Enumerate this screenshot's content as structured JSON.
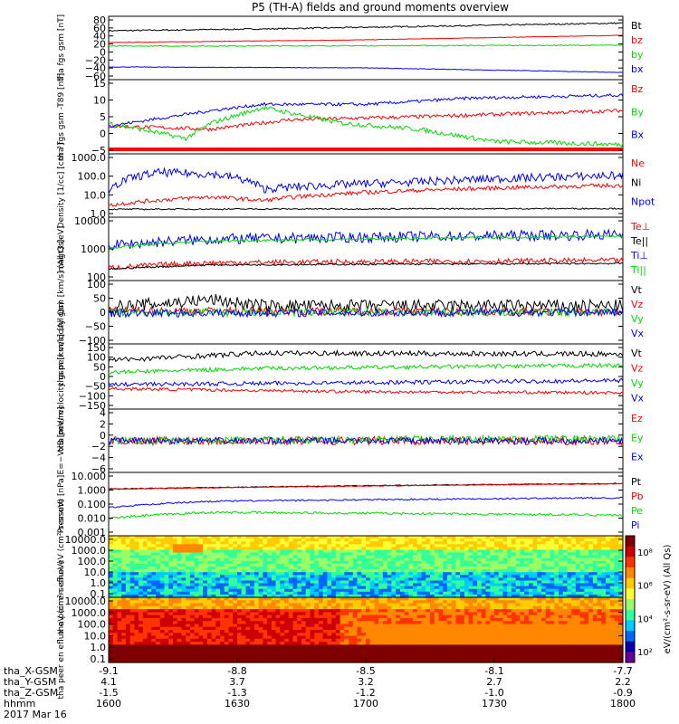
{
  "title": "P5 (TH-A) fields and ground moments overview",
  "colors": {
    "black": "#000000",
    "red": "#ff0000",
    "green": "#00dd00",
    "blue": "#0000ff"
  },
  "colorbar_ticks": [
    "10⁸",
    "10⁶",
    "10⁴",
    "10²"
  ],
  "colorbar_label": "eV/(cm²-s-sr-eV) (All Qs)",
  "xaxis": {
    "rows": [
      {
        "label": "tha_X-GSM",
        "values": [
          "-9.1",
          "-8.8",
          "-8.5",
          "-8.1",
          "-7.7"
        ]
      },
      {
        "label": "tha_Y-GSM",
        "values": [
          "4.1",
          "3.7",
          "3.2",
          "2.7",
          "2.2"
        ]
      },
      {
        "label": "tha_Z-GSM",
        "values": [
          "-1.5",
          "-1.3",
          "-1.2",
          "-1.0",
          "-0.9"
        ]
      },
      {
        "label": "hhmm",
        "values": [
          "1600",
          "1630",
          "1700",
          "1730",
          "1800"
        ]
      }
    ],
    "date": "2017 Mar 16"
  },
  "chart_data": [
    {
      "type": "line",
      "ylabel": "tha fgs gsm [nT]",
      "ylim": [
        -60,
        80
      ],
      "yticks": [
        "80",
        "60",
        "40",
        "20",
        "0",
        "−20",
        "−40",
        "−60"
      ],
      "series": [
        {
          "name": "Bt",
          "color": "black"
        },
        {
          "name": "bz",
          "color": "red"
        },
        {
          "name": "by",
          "color": "green"
        },
        {
          "name": "bx",
          "color": "blue"
        }
      ]
    },
    {
      "type": "line",
      "ylabel": "tha fgs gsm -T89 [nT]",
      "ylim": [
        -8,
        16
      ],
      "yticks": [
        "15",
        "10",
        "5",
        "0",
        "−5"
      ],
      "series": [
        {
          "name": "Bz",
          "color": "red"
        },
        {
          "name": "By",
          "color": "green"
        },
        {
          "name": "Bx",
          "color": "blue"
        }
      ]
    },
    {
      "type": "line",
      "ylabel": "Density [1/cc] [cm⁻³]",
      "ylim": [
        0.3,
        2000
      ],
      "scale": "log",
      "yticks": [
        "1000.0",
        "100.0",
        "10.0",
        "1.0"
      ],
      "series": [
        {
          "name": "Ne",
          "color": "red"
        },
        {
          "name": "Ni",
          "color": "black"
        },
        {
          "name": "Npot",
          "color": "blue"
        }
      ]
    },
    {
      "type": "line",
      "ylabel": "magt3 [eV]",
      "ylim": [
        20,
        20000
      ],
      "scale": "log",
      "yticks": [
        "10000",
        "1000",
        "100"
      ],
      "series": [
        {
          "name": "Te⊥",
          "color": "red"
        },
        {
          "name": "Te||",
          "color": "black"
        },
        {
          "name": "Ti⊥",
          "color": "blue"
        },
        {
          "name": "Ti||",
          "color": "green"
        }
      ]
    },
    {
      "type": "line",
      "ylabel": "tha peir velocity gsm [km/s] (All Qs)",
      "ylim": [
        -100,
        100
      ],
      "yticks": [
        "100",
        "50",
        "0",
        "−50",
        "−100"
      ],
      "series": [
        {
          "name": "Vt",
          "color": "black"
        },
        {
          "name": "Vz",
          "color": "red"
        },
        {
          "name": "Vy",
          "color": "green"
        },
        {
          "name": "Vx",
          "color": "blue"
        }
      ]
    },
    {
      "type": "line",
      "ylabel": "tha peer velocity gsm [km/s] (All Qs)",
      "ylim": [
        -160,
        160
      ],
      "yticks": [
        "150",
        "100",
        "50",
        "0",
        "−50",
        "−100",
        "−150"
      ],
      "series": [
        {
          "name": "Vt",
          "color": "black"
        },
        {
          "name": "Vz",
          "color": "red"
        },
        {
          "name": "Vy",
          "color": "green"
        },
        {
          "name": "Vx",
          "color": "blue"
        }
      ]
    },
    {
      "type": "line",
      "ylabel": "E=−VxB [mV/m]",
      "ylim": [
        -6,
        6
      ],
      "yticks": [
        "4",
        "2",
        "0",
        "−2",
        "−4",
        "−6"
      ],
      "series": [
        {
          "name": "Ez",
          "color": "red"
        },
        {
          "name": "Ey",
          "color": "green"
        },
        {
          "name": "Ex",
          "color": "blue"
        }
      ]
    },
    {
      "type": "line",
      "ylabel": "Pressure [nPa]",
      "ylim": [
        0.001,
        10
      ],
      "scale": "log",
      "yticks": [
        "10.000",
        "1.000",
        "0.100",
        "0.010",
        "0.001"
      ],
      "series": [
        {
          "name": "Pt",
          "color": "black"
        },
        {
          "name": "Pb",
          "color": "red"
        },
        {
          "name": "Pe",
          "color": "green"
        },
        {
          "name": "Pi",
          "color": "blue"
        }
      ]
    },
    {
      "type": "heatmap",
      "ylabel": "tha peir en eflux eV (cm²-s-sr-eV)",
      "ylim": [
        0.1,
        10000
      ],
      "scale": "log",
      "yticks": [
        "10000.0",
        "1000.0",
        "100.0",
        "10.0",
        "1.0",
        "0.1"
      ]
    },
    {
      "type": "heatmap",
      "ylabel": "tha peer en eflux eV (cm²-s-sr-eV)",
      "ylim": [
        0.1,
        10000
      ],
      "scale": "log",
      "yticks": [
        "10000.0",
        "1000.0",
        "100.0",
        "10.0",
        "1.0",
        "0.1"
      ]
    }
  ]
}
